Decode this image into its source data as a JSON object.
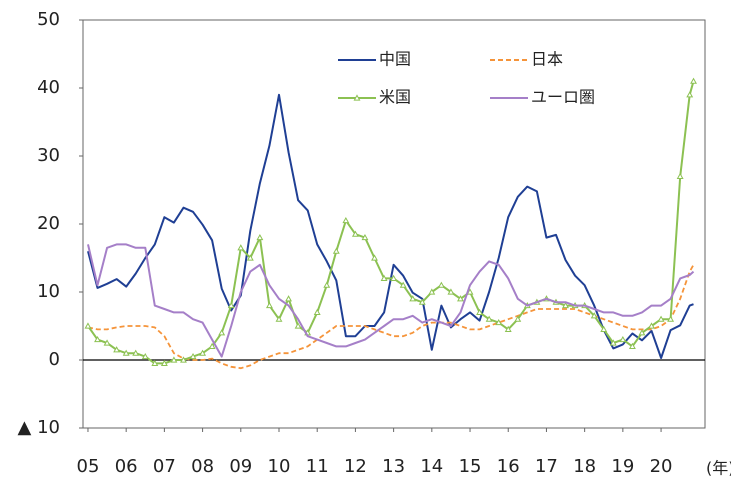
{
  "chart_data": {
    "type": "line",
    "x": [
      2005,
      2005.25,
      2005.5,
      2005.75,
      2006,
      2006.25,
      2006.5,
      2006.75,
      2007,
      2007.25,
      2007.5,
      2007.75,
      2008,
      2008.25,
      2008.5,
      2008.75,
      2009,
      2009.25,
      2009.5,
      2009.75,
      2010,
      2010.25,
      2010.5,
      2010.75,
      2011,
      2011.25,
      2011.5,
      2011.75,
      2012,
      2012.25,
      2012.5,
      2012.75,
      2013,
      2013.25,
      2013.5,
      2013.75,
      2014,
      2014.25,
      2014.5,
      2014.75,
      2015,
      2015.25,
      2015.5,
      2015.75,
      2016,
      2016.25,
      2016.5,
      2016.75,
      2017,
      2017.25,
      2017.5,
      2017.75,
      2018,
      2018.25,
      2018.5,
      2018.75,
      2019,
      2019.25,
      2019.5,
      2019.75,
      2020,
      2020.25,
      2020.5,
      2020.75,
      2020.85
    ],
    "series": [
      {
        "name": "中国",
        "color": "#1f3f94",
        "line_style": "solid",
        "values": [
          16,
          10.6,
          11.2,
          11.9,
          10.8,
          12.7,
          15,
          17,
          21,
          20.2,
          22.4,
          21.8,
          19.9,
          17.6,
          10.5,
          7.3,
          9.5,
          19,
          26,
          31.5,
          39,
          30.5,
          23.5,
          22,
          17,
          14.5,
          11.7,
          3.5,
          3.5,
          5,
          5,
          7,
          14,
          12.4,
          9.9,
          9,
          1.5,
          8,
          4.8,
          6,
          7,
          5.8,
          10,
          15,
          21,
          24,
          25.5,
          24.8,
          18,
          18.4,
          14.7,
          12.4,
          11,
          8,
          4.4,
          1.7,
          2.3,
          3.9,
          2.9,
          4.3,
          0.3,
          4.4,
          5.1,
          8,
          8.2
        ]
      },
      {
        "name": "日本",
        "color": "#f5943a",
        "line_style": "dashed",
        "values": [
          4.8,
          4.5,
          4.5,
          4.8,
          5,
          5,
          5,
          4.8,
          3.5,
          1,
          0.2,
          0,
          0,
          0.2,
          -0.5,
          -1,
          -1.2,
          -0.8,
          0,
          0.5,
          1,
          1,
          1.5,
          2,
          3,
          4,
          5,
          5,
          5,
          5,
          4.5,
          4,
          3.5,
          3.5,
          4,
          5,
          5.5,
          5.5,
          5.5,
          5,
          4.5,
          4.5,
          5,
          5.5,
          6,
          6.5,
          7,
          7.5,
          7.5,
          7.5,
          7.5,
          7.5,
          7,
          6.5,
          6,
          5.5,
          5,
          4.5,
          4.5,
          4.5,
          5,
          6,
          9,
          13,
          14
        ]
      },
      {
        "name": "米国",
        "color": "#8cc152",
        "line_style": "solid",
        "marker": "triangle",
        "values": [
          5,
          3,
          2.5,
          1.5,
          1,
          1,
          0.5,
          -0.5,
          -0.5,
          0,
          0,
          0.5,
          1,
          2,
          4,
          8,
          16.5,
          15,
          18,
          8,
          6,
          9,
          5,
          4,
          7,
          11,
          16,
          20.5,
          18.5,
          18,
          15,
          12,
          12,
          11,
          9,
          8.5,
          10,
          11,
          10,
          9,
          10,
          7,
          6,
          5.5,
          4.5,
          6,
          8,
          8.5,
          9,
          8.5,
          8,
          8,
          8,
          6.5,
          4.5,
          2.5,
          3,
          2,
          4,
          5,
          6,
          6,
          27,
          39,
          41
        ]
      },
      {
        "name": "ユーロ圏",
        "color": "#a57fc8",
        "line_style": "solid",
        "values": [
          17,
          11,
          16.5,
          17,
          17,
          16.5,
          16.5,
          8,
          7.5,
          7,
          7,
          6,
          5.5,
          3,
          0.5,
          5,
          10,
          13,
          14,
          11,
          9,
          8,
          6,
          3.5,
          3,
          2.5,
          2,
          2,
          2.5,
          3,
          4,
          5,
          6,
          6,
          6.5,
          5.5,
          6,
          5.5,
          5,
          7,
          11,
          13,
          14.5,
          14,
          12,
          9,
          8,
          8.5,
          9,
          8.5,
          8.5,
          8,
          8,
          7.5,
          7,
          7,
          6.5,
          6.5,
          7,
          8,
          8,
          9,
          12,
          12.5,
          13
        ]
      }
    ],
    "xlim": [
      2004.87,
      2021.15
    ],
    "xticks": [
      {
        "value": 2005,
        "label": "05"
      },
      {
        "value": 2006,
        "label": "06"
      },
      {
        "value": 2007,
        "label": "07"
      },
      {
        "value": 2008,
        "label": "08"
      },
      {
        "value": 2009,
        "label": "09"
      },
      {
        "value": 2010,
        "label": "10"
      },
      {
        "value": 2011,
        "label": "11"
      },
      {
        "value": 2012,
        "label": "12"
      },
      {
        "value": 2013,
        "label": "13"
      },
      {
        "value": 2014,
        "label": "14"
      },
      {
        "value": 2015,
        "label": "15"
      },
      {
        "value": 2016,
        "label": "16"
      },
      {
        "value": 2017,
        "label": "17"
      },
      {
        "value": 2018,
        "label": "18"
      },
      {
        "value": 2019,
        "label": "19"
      },
      {
        "value": 2020,
        "label": "20"
      }
    ],
    "x_label": "(年)",
    "ylim": [
      -10,
      50
    ],
    "yticks": [
      {
        "value": -10,
        "label": "▲ 10"
      },
      0,
      10,
      20,
      30,
      40,
      50
    ],
    "grid": false,
    "legend": "upper right"
  }
}
